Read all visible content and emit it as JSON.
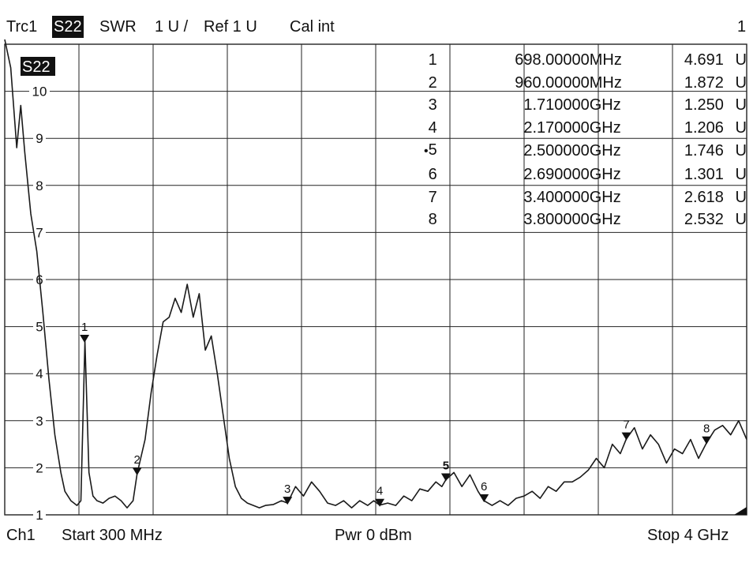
{
  "header": {
    "trace": "Trc1",
    "param": "S22",
    "format": "SWR",
    "scale": "1 U /",
    "ref": "Ref 1 U",
    "cal": "Cal int",
    "channel_num": "1"
  },
  "footer": {
    "channel": "Ch1",
    "start": "Start  300 MHz",
    "power": "Pwr  0 dBm",
    "stop": "Stop  4 GHz"
  },
  "trace_label": "S22",
  "markers": [
    {
      "num": "1",
      "freq": "698.00000",
      "unit": "MHz",
      "value": "4.691",
      "vunit": "U",
      "active": false
    },
    {
      "num": "2",
      "freq": "960.00000",
      "unit": "MHz",
      "value": "1.872",
      "vunit": "U",
      "active": false
    },
    {
      "num": "3",
      "freq": "1.710000",
      "unit": "GHz",
      "value": "1.250",
      "vunit": "U",
      "active": false
    },
    {
      "num": "4",
      "freq": "2.170000",
      "unit": "GHz",
      "value": "1.206",
      "vunit": "U",
      "active": false
    },
    {
      "num": "5",
      "freq": "2.500000",
      "unit": "GHz",
      "value": "1.746",
      "vunit": "U",
      "active": true
    },
    {
      "num": "6",
      "freq": "2.690000",
      "unit": "GHz",
      "value": "1.301",
      "vunit": "U",
      "active": false
    },
    {
      "num": "7",
      "freq": "3.400000",
      "unit": "GHz",
      "value": "2.618",
      "vunit": "U",
      "active": false
    },
    {
      "num": "8",
      "freq": "3.800000",
      "unit": "GHz",
      "value": "2.532",
      "vunit": "U",
      "active": false
    }
  ],
  "chart_data": {
    "type": "line",
    "title": "",
    "xlabel": "",
    "ylabel": "",
    "xlim": [
      0.3,
      4.0
    ],
    "x_unit": "GHz",
    "ylim": [
      1,
      11
    ],
    "yticks": [
      1,
      2,
      3,
      4,
      5,
      6,
      7,
      8,
      9,
      10
    ],
    "grid": true,
    "series": [
      {
        "name": "S22",
        "x": [
          0.3,
          0.33,
          0.36,
          0.38,
          0.4,
          0.43,
          0.46,
          0.49,
          0.52,
          0.55,
          0.58,
          0.6,
          0.63,
          0.66,
          0.68,
          0.7,
          0.72,
          0.74,
          0.76,
          0.79,
          0.82,
          0.85,
          0.88,
          0.91,
          0.94,
          0.96,
          1.0,
          1.03,
          1.06,
          1.09,
          1.12,
          1.15,
          1.18,
          1.21,
          1.24,
          1.27,
          1.3,
          1.33,
          1.36,
          1.39,
          1.42,
          1.45,
          1.48,
          1.51,
          1.54,
          1.57,
          1.6,
          1.64,
          1.68,
          1.71,
          1.75,
          1.79,
          1.83,
          1.87,
          1.91,
          1.95,
          1.99,
          2.03,
          2.07,
          2.11,
          2.14,
          2.17,
          2.21,
          2.25,
          2.29,
          2.33,
          2.37,
          2.41,
          2.45,
          2.48,
          2.5,
          2.54,
          2.58,
          2.62,
          2.66,
          2.69,
          2.73,
          2.77,
          2.81,
          2.85,
          2.89,
          2.93,
          2.97,
          3.01,
          3.05,
          3.09,
          3.13,
          3.17,
          3.21,
          3.25,
          3.29,
          3.33,
          3.37,
          3.4,
          3.44,
          3.48,
          3.52,
          3.56,
          3.6,
          3.64,
          3.68,
          3.72,
          3.76,
          3.8,
          3.84,
          3.88,
          3.92,
          3.96,
          4.0
        ],
        "values": [
          11.1,
          10.5,
          8.8,
          9.7,
          8.7,
          7.4,
          6.6,
          5.3,
          3.9,
          2.7,
          1.9,
          1.5,
          1.3,
          1.2,
          1.3,
          4.691,
          1.9,
          1.4,
          1.3,
          1.25,
          1.35,
          1.4,
          1.3,
          1.15,
          1.3,
          1.872,
          2.6,
          3.6,
          4.4,
          5.1,
          5.2,
          5.6,
          5.3,
          5.9,
          5.2,
          5.7,
          4.5,
          4.8,
          4.0,
          3.1,
          2.2,
          1.6,
          1.35,
          1.25,
          1.2,
          1.15,
          1.2,
          1.22,
          1.3,
          1.25,
          1.6,
          1.4,
          1.7,
          1.5,
          1.25,
          1.2,
          1.3,
          1.15,
          1.3,
          1.2,
          1.3,
          1.206,
          1.25,
          1.2,
          1.4,
          1.3,
          1.55,
          1.5,
          1.7,
          1.6,
          1.746,
          1.9,
          1.6,
          1.85,
          1.5,
          1.301,
          1.2,
          1.3,
          1.2,
          1.35,
          1.4,
          1.5,
          1.35,
          1.6,
          1.5,
          1.7,
          1.7,
          1.8,
          1.95,
          2.2,
          2.0,
          2.5,
          2.3,
          2.618,
          2.85,
          2.4,
          2.7,
          2.5,
          2.1,
          2.4,
          2.3,
          2.6,
          2.2,
          2.532,
          2.8,
          2.9,
          2.7,
          3.0,
          2.6
        ]
      }
    ],
    "markers": [
      {
        "label": "1",
        "x": 0.698,
        "y": 4.691
      },
      {
        "label": "2",
        "x": 0.96,
        "y": 1.872
      },
      {
        "label": "3",
        "x": 1.71,
        "y": 1.25
      },
      {
        "label": "4",
        "x": 2.17,
        "y": 1.206
      },
      {
        "label": "5",
        "x": 2.5,
        "y": 1.746
      },
      {
        "label": "6",
        "x": 2.69,
        "y": 1.301
      },
      {
        "label": "7",
        "x": 3.4,
        "y": 2.618
      },
      {
        "label": "8",
        "x": 3.8,
        "y": 2.532
      }
    ]
  },
  "colors": {
    "background": "#ffffff",
    "grid": "#222222",
    "trace": "#1a1a1a",
    "text": "#111111"
  }
}
